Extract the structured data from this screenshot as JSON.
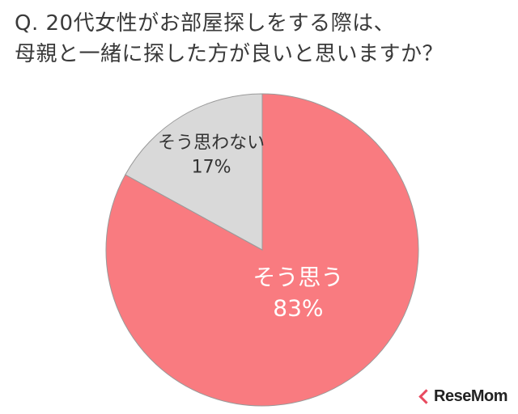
{
  "title": {
    "line1": "Q. 20代女性がお部屋探しをする際は、",
    "line2": "母親と一緒に探した方が良いと思いますか？"
  },
  "chart_data": {
    "type": "pie",
    "title": "Q. 20代女性がお部屋探しをする際は、母親と一緒に探した方が良いと思いますか？",
    "slices": [
      {
        "label": "そう思う",
        "value": 83,
        "value_label": "83%",
        "color": "#f97b80",
        "label_color": "#ffffff"
      },
      {
        "label": "そう思わない",
        "value": 17,
        "value_label": "17%",
        "color": "#d9d9d9",
        "label_color": "#333333"
      }
    ],
    "start_angle": "12 o'clock",
    "direction": "clockwise",
    "legend": "none"
  },
  "logo": {
    "text": "ReseMom",
    "accent": "#e84a5f"
  }
}
